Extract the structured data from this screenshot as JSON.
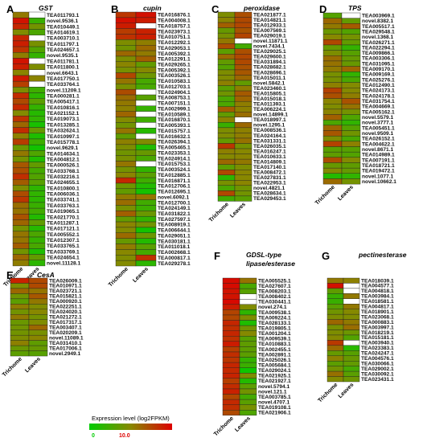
{
  "legend": {
    "title": "Expression level (log2FPKM)",
    "min_label": "0",
    "max_label": "10.0",
    "color_low": "#00cc00",
    "color_high": "#dd0000"
  },
  "columns": [
    "Trichome",
    "Leaves"
  ],
  "chart_data": [
    {
      "type": "heatmap",
      "letter": "A",
      "title": "GST",
      "rows": [
        "TEA011793.1",
        "novel.9536.1",
        "TEA010449.1",
        "TEA014619.1",
        "TEA003710.1",
        "TEA011797.1",
        "TEA024657.1",
        "novel.9535.1",
        "TEA011781.1",
        "TEA011800.1",
        "novel.6643.1",
        "TEA017750.1",
        "TEA033764.1",
        "novel.11209.1",
        "TEA000281.1",
        "TEA005417.1",
        "TEA010816.1",
        "TEA021152.1",
        "TEA019073.1",
        "TEA013285.1",
        "TEA032624.1",
        "TEA010997.1",
        "TEA015778.1",
        "novel.9629.1",
        "TEA014634.1",
        "TEA004812.1",
        "TEA000526.1",
        "TEA033768.1",
        "TEA032216.1",
        "TEA024655.1",
        "TEA010800.1",
        "TEA006036.1",
        "TEA033741.1",
        "TEA033763.1",
        "TEA019065.1",
        "TEA021770.1",
        "TEA011287.1",
        "TEA017121.1",
        "TEA005552.1",
        "TEA012307.1",
        "TEA033765.1",
        "TEA033769.1",
        "TEA024654.1",
        "novel.11128.1"
      ],
      "values": [
        [
          5.6,
          null
        ],
        [
          9.3,
          2.1
        ],
        [
          8.6,
          4.2
        ],
        [
          4.7,
          2.8
        ],
        [
          8.6,
          null
        ],
        [
          8.9,
          4.4
        ],
        [
          8.1,
          3.0
        ],
        [
          5.4,
          1.9
        ],
        [
          9.3,
          null
        ],
        [
          8.9,
          4.6
        ],
        [
          5.1,
          null
        ],
        [
          9.0,
          5.2
        ],
        [
          7.7,
          null
        ],
        [
          4.6,
          2.3
        ],
        [
          8.4,
          1.6
        ],
        [
          7.3,
          3.3
        ],
        [
          8.5,
          1.9
        ],
        [
          4.8,
          1.4
        ],
        [
          8.1,
          1.8
        ],
        [
          6.2,
          0.9
        ],
        [
          8.4,
          3.8
        ],
        [
          5.3,
          1.1
        ],
        [
          7.8,
          2.2
        ],
        [
          3.9,
          0.7
        ],
        [
          5.6,
          2.9
        ],
        [
          4.3,
          1.2
        ],
        [
          6.8,
          3.6
        ],
        [
          7.1,
          2.5
        ],
        [
          8.3,
          3.0
        ],
        [
          6.6,
          3.2
        ],
        [
          4.6,
          1.7
        ],
        [
          7.2,
          1.8
        ],
        [
          8.0,
          1.6
        ],
        [
          6.0,
          2.1
        ],
        [
          5.8,
          2.4
        ],
        [
          7.0,
          1.3
        ],
        [
          6.3,
          3.5
        ],
        [
          4.3,
          1.4
        ],
        [
          5.7,
          2.8
        ],
        [
          5.7,
          2.0
        ],
        [
          6.6,
          2.7
        ],
        [
          4.2,
          1.1
        ],
        [
          6.2,
          3.6
        ],
        [
          5.4,
          1.6
        ]
      ]
    },
    {
      "type": "heatmap",
      "letter": "B",
      "title": "cupin",
      "rows": [
        "TEA016876.1",
        "TEA004008.1",
        "TEA018757.1",
        "TEA023973.1",
        "TEA010751.1",
        "TEA012292.1",
        "TEA029053.1",
        "TEA005392.1",
        "TEA012291.1",
        "TEA029265.1",
        "TEA005392.1",
        "TEA003526.1",
        "TEA010583.1",
        "TEA012703.1",
        "TEA024904.1",
        "TEA008753.1",
        "TEA007151.1",
        "TEA002999.1",
        "TEA010589.1",
        "TEA016870.1",
        "TEA005393.1",
        "TEA015757.1",
        "TEA016632.1",
        "TEA026394.1",
        "TEA005465.1",
        "TEA023353.1",
        "TEA024914.1",
        "TEA015753.1",
        "TEA003524.1",
        "TEA012885.1",
        "TEA016871.1",
        "TEA012706.1",
        "TEA012695.1",
        "novel.6092.1",
        "TEA012700.1",
        "TEA024149.1",
        "TEA031822.1",
        "TEA027597.1",
        "TEA008919.1",
        "TEA006644.1",
        "TEA029051.1",
        "TEA030181.1",
        "TEA011018.1",
        "TEA002668.1",
        "TEA000817.1",
        "TEA029278.1"
      ],
      "values": [
        [
          8.0,
          9.4
        ],
        [
          9.4,
          9.0
        ],
        [
          9.0,
          null
        ],
        [
          7.8,
          8.8
        ],
        [
          8.2,
          8.9
        ],
        [
          4.6,
          5.4
        ],
        [
          4.2,
          6.1
        ],
        [
          6.2,
          5.5
        ],
        [
          4.6,
          6.5
        ],
        [
          5.1,
          3.6
        ],
        [
          4.4,
          4.9
        ],
        [
          7.4,
          4.0
        ],
        [
          5.7,
          2.6
        ],
        [
          4.5,
          2.6
        ],
        [
          7.2,
          null
        ],
        [
          6.1,
          3.2
        ],
        [
          5.6,
          null
        ],
        [
          5.3,
          2.0
        ],
        [
          6.3,
          null
        ],
        [
          4.8,
          2.3
        ],
        [
          4.1,
          null
        ],
        [
          5.7,
          1.4
        ],
        [
          3.5,
          null
        ],
        [
          5.3,
          4.7
        ],
        [
          4.6,
          1.2
        ],
        [
          4.1,
          3.8
        ],
        [
          4.4,
          2.7
        ],
        [
          5.7,
          null
        ],
        [
          4.3,
          1.8
        ],
        [
          5.1,
          3.3
        ],
        [
          8.6,
          2.3
        ],
        [
          4.0,
          1.3
        ],
        [
          3.6,
          0.8
        ],
        [
          5.5,
          5.7
        ],
        [
          6.0,
          2.4
        ],
        [
          4.4,
          2.2
        ],
        [
          6.5,
          3.9
        ],
        [
          3.7,
          1.9
        ],
        [
          5.1,
          4.1
        ],
        [
          4.8,
          0.7
        ],
        [
          6.1,
          3.9
        ],
        [
          3.8,
          1.3
        ],
        [
          5.4,
          3.3
        ],
        [
          5.0,
          2.5
        ],
        [
          4.7,
          8.2
        ],
        [
          4.8,
          1.6
        ]
      ]
    },
    {
      "type": "heatmap",
      "letter": "C",
      "title": "peroxidase",
      "rows": [
        "TEA021877.1",
        "TEA014821.1",
        "TEA012933.1",
        "TEA007569.1",
        "TEA029019.1",
        "novel.11871.1",
        "novel.7434.1",
        "TEA029025.1",
        "TEA029600.1",
        "TEA031894.1",
        "TEA028682.1",
        "TEA028696.1",
        "TEA015011.1",
        "novel.5842.1",
        "TEA023460.1",
        "TEA015805.1",
        "TEA015018.1",
        "TEA011393.1",
        "TEA006224.1",
        "novel.14899.1",
        "TEA018997.1",
        "novel.1295.1",
        "TEA008536.1",
        "TEA024164.1",
        "TEA031331.1",
        "TEA026035.1",
        "TEA016247.1",
        "TEA010633.1",
        "TEA014809.1",
        "TEA017140.1",
        "TEA008472.1",
        "TEA027831.1",
        "TEA022953.1",
        "novel.4821.1",
        "TEA028634.1",
        "TEA029453.1"
      ],
      "values": [
        [
          4.6,
          7.1
        ],
        [
          5.2,
          7.3
        ],
        [
          6.5,
          7.4
        ],
        [
          3.8,
          6.9
        ],
        [
          4.4,
          7.5
        ],
        [
          5.6,
          null
        ],
        [
          7.1,
          2.5
        ],
        [
          3.4,
          7.1
        ],
        [
          6.1,
          7.4
        ],
        [
          3.6,
          7.3
        ],
        [
          3.1,
          7.0
        ],
        [
          4.6,
          6.8
        ],
        [
          4.7,
          6.2
        ],
        [
          5.3,
          3.6
        ],
        [
          3.3,
          5.4
        ],
        [
          4.1,
          6.7
        ],
        [
          2.8,
          6.3
        ],
        [
          2.8,
          5.4
        ],
        [
          6.6,
          5.3
        ],
        [
          3.6,
          6.0
        ],
        [
          5.2,
          null
        ],
        [
          2.1,
          6.2
        ],
        [
          4.6,
          5.3
        ],
        [
          4.7,
          5.4
        ],
        [
          3.7,
          5.8
        ],
        [
          8.0,
          4.3
        ],
        [
          5.3,
          5.0
        ],
        [
          4.9,
          5.1
        ],
        [
          6.2,
          5.6
        ],
        [
          3.4,
          4.6
        ],
        [
          7.4,
          5.1
        ],
        [
          1.6,
          5.0
        ],
        [
          4.4,
          5.1
        ],
        [
          2.8,
          4.1
        ],
        [
          7.4,
          4.2
        ],
        [
          2.4,
          3.3
        ]
      ]
    },
    {
      "type": "heatmap",
      "letter": "D",
      "title": "TPS",
      "rows": [
        "TEA003969.1",
        "novel.8382.1",
        "TEA005517.1",
        "TEA029548.1",
        "novel.1368.1",
        "TEA026271.1",
        "TEA022294.1",
        "TEA009866.1",
        "TEA003306.1",
        "TEA031095.1",
        "TEA009170.1",
        "TEA009169.1",
        "TEA025276.1",
        "TEA012490.1",
        "TEA024173.1",
        "TEA024178.1",
        "TEA031754.1",
        "TEA004669.1",
        "TEA005162.1",
        "novel.5579.1",
        "novel.3777.1",
        "TEA005451.1",
        "novel.9509.1",
        "TEA026152.1",
        "TEA004622.1",
        "novel.8671.1",
        "TEA014989.1",
        "TEA007191.1",
        "TEA018721.1",
        "TEA019472.1",
        "novel.1077.1",
        "novel.10662.1"
      ],
      "values": [
        [
          3.1,
          null
        ],
        [
          6.2,
          3.6
        ],
        [
          5.6,
          6.7
        ],
        [
          3.9,
          3.0
        ],
        [
          5.0,
          4.3
        ],
        [
          7.4,
          3.6
        ],
        [
          3.7,
          1.9
        ],
        [
          4.6,
          3.2
        ],
        [
          6.0,
          3.7
        ],
        [
          5.8,
          3.8
        ],
        [
          5.5,
          6.3
        ],
        [
          4.4,
          1.9
        ],
        [
          4.4,
          2.7
        ],
        [
          5.3,
          4.8
        ],
        [
          7.6,
          4.9
        ],
        [
          7.1,
          5.4
        ],
        [
          5.1,
          7.0
        ],
        [
          4.7,
          5.8
        ],
        [
          5.2,
          4.3
        ],
        [
          6.5,
          2.9
        ],
        [
          2.8,
          1.8
        ],
        [
          6.2,
          3.1
        ],
        [
          6.8,
          4.1
        ],
        [
          4.6,
          2.7
        ],
        [
          7.6,
          5.3
        ],
        [
          3.3,
          3.2
        ],
        [
          3.5,
          3.0
        ],
        [
          7.2,
          4.8
        ],
        [
          3.8,
          3.5
        ],
        [
          4.8,
          3.7
        ],
        [
          1.3,
          1.8
        ],
        [
          6.1,
          4.3
        ]
      ]
    },
    {
      "type": "heatmap",
      "letter": "E",
      "title": "CesA",
      "rows": [
        "TEA026009.1",
        "TEA010971.1",
        "TEA023721.1",
        "TEA015821.1",
        "TEA000920.1",
        "TEA022251.1",
        "TEA024020.1",
        "TEA021272.1",
        "TEA017317.1",
        "TEA003407.1",
        "TEA020209.1",
        "novel.11089.1",
        "TEA031410.1",
        "TEA017006.1",
        "novel.2949.1"
      ],
      "values": [
        [
          8.8,
          7.3
        ],
        [
          4.6,
          7.3
        ],
        [
          6.2,
          5.7
        ],
        [
          4.1,
          6.8
        ],
        [
          3.4,
          5.6
        ],
        [
          5.4,
          4.7
        ],
        [
          4.2,
          5.0
        ],
        [
          5.5,
          4.3
        ],
        [
          3.9,
          4.7
        ],
        [
          4.2,
          6.2
        ],
        [
          4.2,
          4.4
        ],
        [
          4.6,
          5.1
        ],
        [
          5.3,
          3.5
        ],
        [
          3.9,
          3.8
        ],
        [
          3.4,
          3.2
        ]
      ]
    },
    {
      "type": "heatmap",
      "letter": "F",
      "title": "GDSL-type lipase/esterase",
      "rows": [
        "TEA005525.1",
        "TEA027607.1",
        "TEA008203.1",
        "TEA008402.1",
        "TEA030441.1",
        "novel.274.1",
        "TEA009538.1",
        "TEA009224.1",
        "TEA028133.1",
        "TEA019805.1",
        "TEA001204.1",
        "TEA009539.1",
        "TEA010883.1",
        "TEA002455.1",
        "TEA002891.1",
        "TEA025026.1",
        "TEA005684.1",
        "TEA029024.1",
        "TEA021925.1",
        "TEA021927.1",
        "novel.5794.1",
        "novel.121.1",
        "TEA003785.1",
        "novel.4707.1",
        "TEA019108.1",
        "TEA021906.1"
      ],
      "values": [
        [
          9.6,
          5.8
        ],
        [
          9.6,
          2.7
        ],
        [
          9.3,
          3.2
        ],
        [
          9.3,
          null
        ],
        [
          9.7,
          null
        ],
        [
          9.0,
          4.7
        ],
        [
          7.5,
          1.7
        ],
        [
          7.4,
          4.6
        ],
        [
          8.6,
          1.1
        ],
        [
          8.3,
          4.1
        ],
        [
          8.6,
          4.9
        ],
        [
          8.2,
          3.2
        ],
        [
          9.0,
          3.5
        ],
        [
          7.7,
          3.4
        ],
        [
          8.3,
          3.4
        ],
        [
          8.0,
          1.9
        ],
        [
          8.6,
          2.2
        ],
        [
          8.5,
          0.5
        ],
        [
          8.7,
          4.6
        ],
        [
          7.7,
          1.3
        ],
        [
          8.4,
          3.4
        ],
        [
          8.8,
          4.2
        ],
        [
          7.4,
          2.5
        ],
        [
          8.5,
          3.3
        ],
        [
          8.3,
          4.4
        ],
        [
          7.3,
          2.9
        ]
      ]
    },
    {
      "type": "heatmap",
      "letter": "G",
      "title": "pectinesterase",
      "rows": [
        "TEA018039.1",
        "TEA004577.1",
        "TEA004818.1",
        "TEA003984.1",
        "TEA018581.1",
        "TEA004817.1",
        "TEA018901.1",
        "TEA023068.1",
        "TEA000883.1",
        "TEA003997.1",
        "TEA018219.1",
        "TEA015181.1",
        "TEA003940.1",
        "TEA023383.1",
        "TEA024247.1",
        "TEA004576.1",
        "TEA030066.1",
        "TEA029002.1",
        "TEA030092.1",
        "TEA023431.1"
      ],
      "values": [
        [
          5.6,
          5.3
        ],
        [
          9.4,
          null
        ],
        [
          3.5,
          null
        ],
        [
          2.1,
          5.6
        ],
        [
          2.1,
          null
        ],
        [
          3.3,
          5.6
        ],
        [
          4.1,
          4.9
        ],
        [
          4.6,
          4.7
        ],
        [
          6.2,
          5.5
        ],
        [
          4.4,
          6.0
        ],
        [
          4.6,
          4.0
        ],
        [
          4.9,
          3.0
        ],
        [
          7.9,
          null
        ],
        [
          6.1,
          1.5
        ],
        [
          3.7,
          3.2
        ],
        [
          5.2,
          3.8
        ],
        [
          3.4,
          3.6
        ],
        [
          4.2,
          2.6
        ],
        [
          5.9,
          3.3
        ],
        [
          4.8,
          4.0
        ]
      ]
    }
  ]
}
